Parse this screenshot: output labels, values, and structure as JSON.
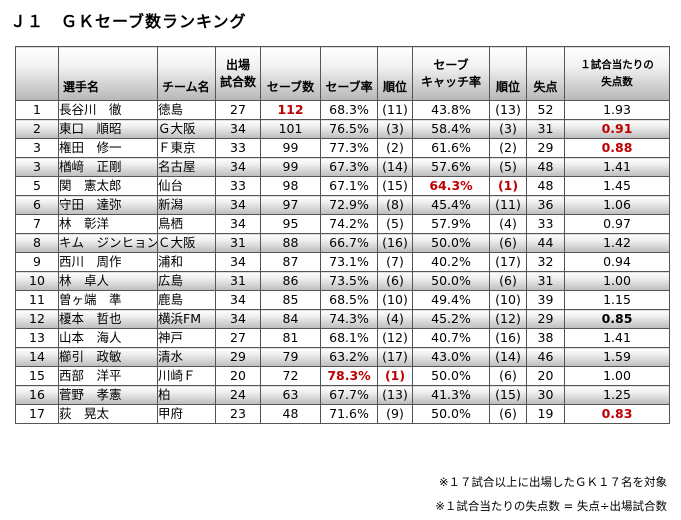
{
  "title": "Ｊ１　ＧＫセーブ数ランキング",
  "headers": {
    "rank": "",
    "player": "選手名",
    "team": "チーム名",
    "games_l1": "出場",
    "games_l2": "試合数",
    "saves": "セーブ数",
    "save_rate": "セーブ率",
    "save_rate_rank": "順位",
    "catch_l1": "セーブ",
    "catch_l2": "キャッチ率",
    "catch_rank": "順位",
    "conceded": "失点",
    "gpg_l1": "１試合当たりの",
    "gpg_l2": "失点数"
  },
  "rows": [
    {
      "rank": "1",
      "player": "長谷川　徹",
      "team": "徳島",
      "games": "27",
      "saves": "112",
      "save_rate": "68.3%",
      "save_rate_rank": "(11)",
      "catch_rate": "43.8%",
      "catch_rank": "(13)",
      "conceded": "52",
      "gpg": "1.93"
    },
    {
      "rank": "2",
      "player": "東口　順昭",
      "team": "Ｇ大阪",
      "games": "34",
      "saves": "101",
      "save_rate": "76.5%",
      "save_rate_rank": "(3)",
      "catch_rate": "58.4%",
      "catch_rank": "(3)",
      "conceded": "31",
      "gpg": "0.91"
    },
    {
      "rank": "3",
      "player": "権田　修一",
      "team": "Ｆ東京",
      "games": "33",
      "saves": "99",
      "save_rate": "77.3%",
      "save_rate_rank": "(2)",
      "catch_rate": "61.6%",
      "catch_rank": "(2)",
      "conceded": "29",
      "gpg": "0.88"
    },
    {
      "rank": "3",
      "player": "楢﨑　正剛",
      "team": "名古屋",
      "games": "34",
      "saves": "99",
      "save_rate": "67.3%",
      "save_rate_rank": "(14)",
      "catch_rate": "57.6%",
      "catch_rank": "(5)",
      "conceded": "48",
      "gpg": "1.41"
    },
    {
      "rank": "5",
      "player": "関　憲太郎",
      "team": "仙台",
      "games": "33",
      "saves": "98",
      "save_rate": "67.1%",
      "save_rate_rank": "(15)",
      "catch_rate": "64.3%",
      "catch_rank": "(1)",
      "conceded": "48",
      "gpg": "1.45"
    },
    {
      "rank": "6",
      "player": "守田　達弥",
      "team": "新潟",
      "games": "34",
      "saves": "97",
      "save_rate": "72.9%",
      "save_rate_rank": "(8)",
      "catch_rate": "45.4%",
      "catch_rank": "(11)",
      "conceded": "36",
      "gpg": "1.06"
    },
    {
      "rank": "7",
      "player": "林　彰洋",
      "team": "鳥栖",
      "games": "34",
      "saves": "95",
      "save_rate": "74.2%",
      "save_rate_rank": "(5)",
      "catch_rate": "57.9%",
      "catch_rank": "(4)",
      "conceded": "33",
      "gpg": "0.97"
    },
    {
      "rank": "8",
      "player": "キム　ジンヒョン",
      "team": "Ｃ大阪",
      "games": "31",
      "saves": "88",
      "save_rate": "66.7%",
      "save_rate_rank": "(16)",
      "catch_rate": "50.0%",
      "catch_rank": "(6)",
      "conceded": "44",
      "gpg": "1.42"
    },
    {
      "rank": "9",
      "player": "西川　周作",
      "team": "浦和",
      "games": "34",
      "saves": "87",
      "save_rate": "73.1%",
      "save_rate_rank": "(7)",
      "catch_rate": "40.2%",
      "catch_rank": "(17)",
      "conceded": "32",
      "gpg": "0.94"
    },
    {
      "rank": "10",
      "player": "林　卓人",
      "team": "広島",
      "games": "31",
      "saves": "86",
      "save_rate": "73.5%",
      "save_rate_rank": "(6)",
      "catch_rate": "50.0%",
      "catch_rank": "(6)",
      "conceded": "31",
      "gpg": "1.00"
    },
    {
      "rank": "11",
      "player": "曽ヶ端　準",
      "team": "鹿島",
      "games": "34",
      "saves": "85",
      "save_rate": "68.5%",
      "save_rate_rank": "(10)",
      "catch_rate": "49.4%",
      "catch_rank": "(10)",
      "conceded": "39",
      "gpg": "1.15"
    },
    {
      "rank": "12",
      "player": "榎本　哲也",
      "team": "横浜FM",
      "games": "34",
      "saves": "84",
      "save_rate": "74.3%",
      "save_rate_rank": "(4)",
      "catch_rate": "45.2%",
      "catch_rank": "(12)",
      "conceded": "29",
      "gpg": "0.85"
    },
    {
      "rank": "13",
      "player": "山本　海人",
      "team": "神戸",
      "games": "27",
      "saves": "81",
      "save_rate": "68.1%",
      "save_rate_rank": "(12)",
      "catch_rate": "40.7%",
      "catch_rank": "(16)",
      "conceded": "38",
      "gpg": "1.41"
    },
    {
      "rank": "14",
      "player": "櫛引　政敏",
      "team": "清水",
      "games": "29",
      "saves": "79",
      "save_rate": "63.2%",
      "save_rate_rank": "(17)",
      "catch_rate": "43.0%",
      "catch_rank": "(14)",
      "conceded": "46",
      "gpg": "1.59"
    },
    {
      "rank": "15",
      "player": "西部　洋平",
      "team": "川崎Ｆ",
      "games": "20",
      "saves": "72",
      "save_rate": "78.3%",
      "save_rate_rank": "(1)",
      "catch_rate": "50.0%",
      "catch_rank": "(6)",
      "conceded": "20",
      "gpg": "1.00"
    },
    {
      "rank": "16",
      "player": "菅野　孝憲",
      "team": "柏",
      "games": "24",
      "saves": "63",
      "save_rate": "67.7%",
      "save_rate_rank": "(13)",
      "catch_rate": "41.3%",
      "catch_rank": "(15)",
      "conceded": "30",
      "gpg": "1.25"
    },
    {
      "rank": "17",
      "player": "荻　晃太",
      "team": "甲府",
      "games": "23",
      "saves": "48",
      "save_rate": "71.6%",
      "save_rate_rank": "(9)",
      "catch_rate": "50.0%",
      "catch_rank": "(6)",
      "conceded": "19",
      "gpg": "0.83"
    }
  ],
  "highlights": {
    "red_color": "#c00000",
    "alt_row_gradient": [
      "#ffffff",
      "#bdbdbd"
    ],
    "red_cells": [
      {
        "row": 0,
        "col": "saves"
      },
      {
        "row": 1,
        "col": "gpg"
      },
      {
        "row": 2,
        "col": "gpg"
      },
      {
        "row": 4,
        "col": "catch_rate"
      },
      {
        "row": 4,
        "col": "catch_rank"
      },
      {
        "row": 14,
        "col": "save_rate"
      },
      {
        "row": 14,
        "col": "save_rate_rank"
      },
      {
        "row": 16,
        "col": "gpg"
      }
    ],
    "bold_cells": [
      {
        "row": 11,
        "col": "gpg"
      }
    ]
  },
  "notes": {
    "note1": "※１７試合以上に出場したＧＫ１７名を対象",
    "note2": "※１試合当たりの失点数 = 失点÷出場試合数"
  }
}
